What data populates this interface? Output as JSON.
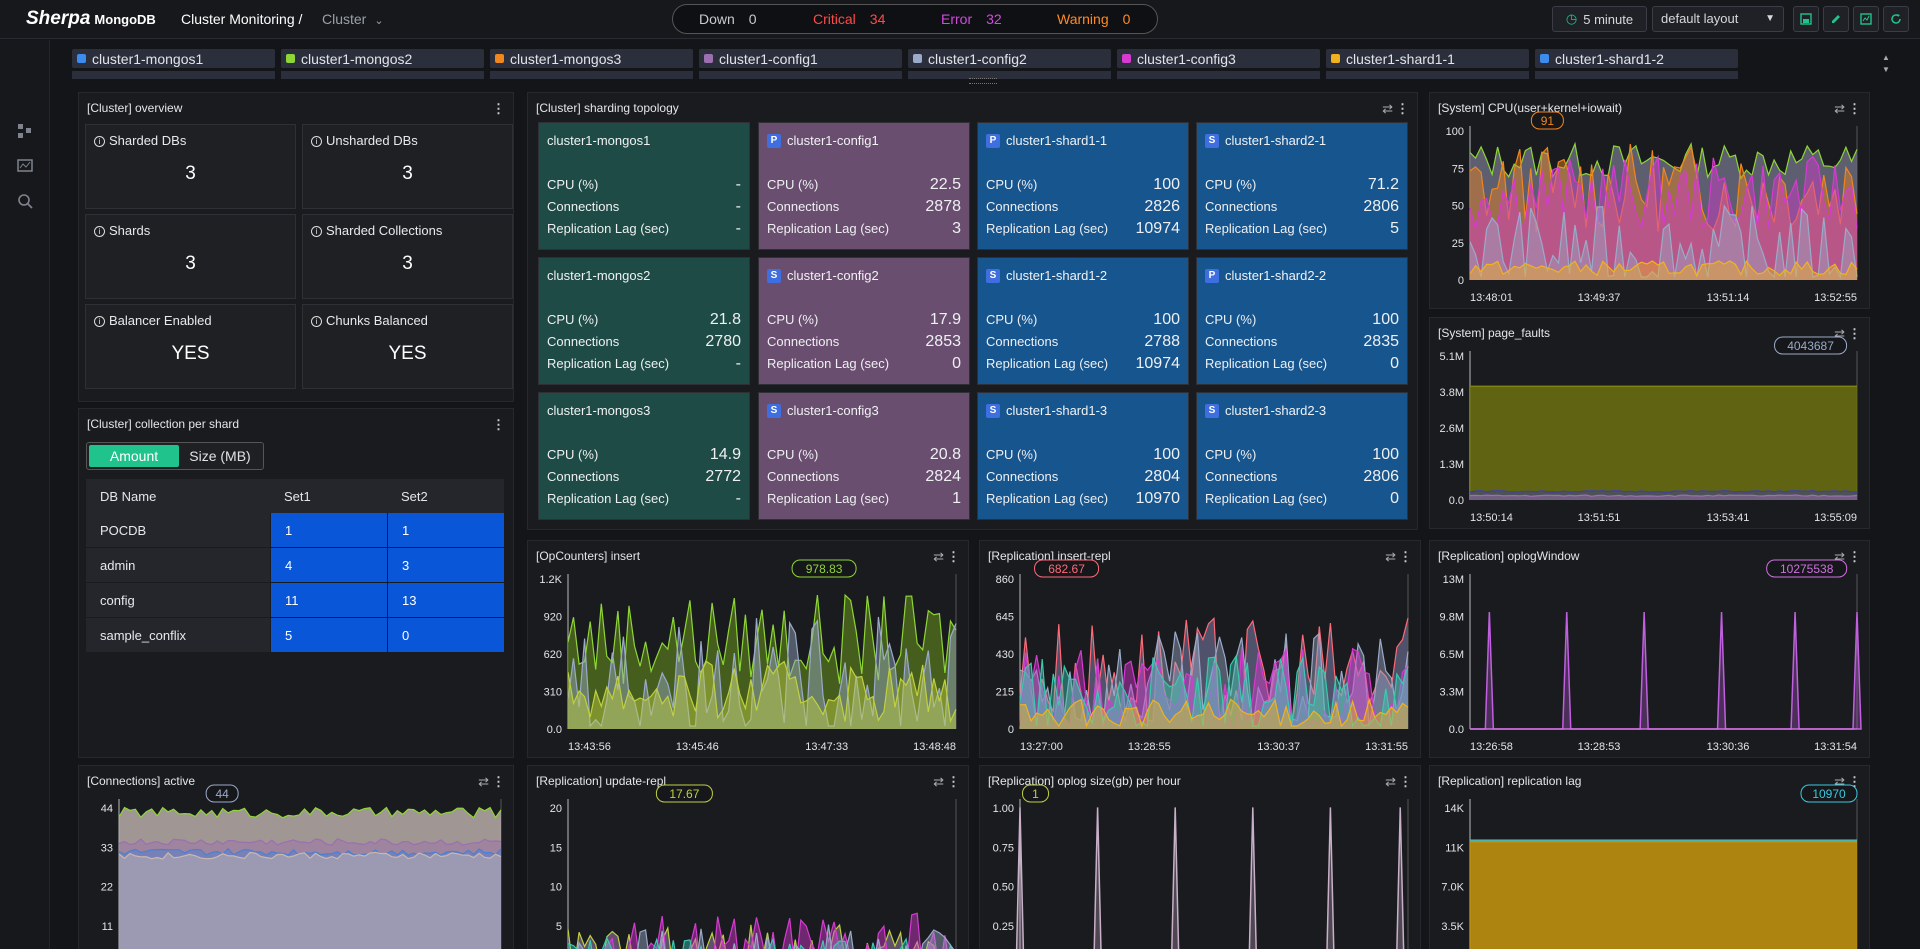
{
  "header": {
    "logo_main": "Sherpa",
    "logo_sub": "MongoDB",
    "breadcrumb": "Cluster Monitoring /",
    "breadcrumb_current": "Cluster",
    "status": [
      {
        "label": "Down",
        "value": "0",
        "color": "#c8cad0"
      },
      {
        "label": "Critical",
        "value": "34",
        "color": "#ff4a4a"
      },
      {
        "label": "Error",
        "value": "32",
        "color": "#d24ae0"
      },
      {
        "label": "Warning",
        "value": "0",
        "color": "#ff8a24"
      }
    ],
    "interval": "5 minute",
    "layout": "default layout"
  },
  "tabs": [
    {
      "label": "cluster1-mongos1",
      "color": "#3c8cf0"
    },
    {
      "label": "cluster1-mongos2",
      "color": "#8ed635"
    },
    {
      "label": "cluster1-mongos3",
      "color": "#f0861e"
    },
    {
      "label": "cluster1-config1",
      "color": "#9c6fb0"
    },
    {
      "label": "cluster1-config2",
      "color": "#9aaac8"
    },
    {
      "label": "cluster1-config3",
      "color": "#d63ad0"
    },
    {
      "label": "cluster1-shard1-1",
      "color": "#f0b21e"
    },
    {
      "label": "cluster1-shard1-2",
      "color": "#3c8cf0"
    }
  ],
  "overview": {
    "title": "[Cluster]  overview",
    "cards": [
      {
        "label": "Sharded DBs",
        "value": "3"
      },
      {
        "label": "Unsharded DBs",
        "value": "3"
      },
      {
        "label": "Shards",
        "value": "3"
      },
      {
        "label": "Sharded Collections",
        "value": "3"
      },
      {
        "label": "Balancer Enabled",
        "value": "YES"
      },
      {
        "label": "Chunks Balanced",
        "value": "YES"
      }
    ]
  },
  "collection_per_shard": {
    "title": "[Cluster]  collection per shard",
    "toggle_on": "Amount",
    "toggle_off": "Size (MB)",
    "headers": [
      "DB Name",
      "Set1",
      "Set2"
    ],
    "rows": [
      [
        "POCDB",
        "1",
        "1"
      ],
      [
        "admin",
        "4",
        "3"
      ],
      [
        "config",
        "11",
        "13"
      ],
      [
        "sample_conflix",
        "5",
        "0"
      ]
    ]
  },
  "topology": {
    "title": "[Cluster]  sharding topology",
    "row_labels": [
      "CPU (%)",
      "Connections",
      "Replication Lag (sec)"
    ],
    "nodes": [
      [
        {
          "name": "cluster1-mongos1",
          "badge": "",
          "kind": "mg",
          "cpu": "-",
          "conn": "-",
          "lag": "-"
        },
        {
          "name": "cluster1-config1",
          "badge": "P",
          "kind": "cf",
          "cpu": "22.5",
          "conn": "2878",
          "lag": "3"
        },
        {
          "name": "cluster1-shard1-1",
          "badge": "P",
          "kind": "sh",
          "cpu": "100",
          "conn": "2826",
          "lag": "10974"
        },
        {
          "name": "cluster1-shard2-1",
          "badge": "S",
          "kind": "sh",
          "cpu": "71.2",
          "conn": "2806",
          "lag": "5"
        }
      ],
      [
        {
          "name": "cluster1-mongos2",
          "badge": "",
          "kind": "mg",
          "cpu": "21.8",
          "conn": "2780",
          "lag": "-"
        },
        {
          "name": "cluster1-config2",
          "badge": "S",
          "kind": "cf",
          "cpu": "17.9",
          "conn": "2853",
          "lag": "0"
        },
        {
          "name": "cluster1-shard1-2",
          "badge": "S",
          "kind": "sh",
          "cpu": "100",
          "conn": "2788",
          "lag": "10974"
        },
        {
          "name": "cluster1-shard2-2",
          "badge": "P",
          "kind": "sh",
          "cpu": "100",
          "conn": "2835",
          "lag": "0"
        }
      ],
      [
        {
          "name": "cluster1-mongos3",
          "badge": "",
          "kind": "mg",
          "cpu": "14.9",
          "conn": "2772",
          "lag": "-"
        },
        {
          "name": "cluster1-config3",
          "badge": "S",
          "kind": "cf",
          "cpu": "20.8",
          "conn": "2824",
          "lag": "1"
        },
        {
          "name": "cluster1-shard1-3",
          "badge": "S",
          "kind": "sh",
          "cpu": "100",
          "conn": "2804",
          "lag": "10970"
        },
        {
          "name": "cluster1-shard2-3",
          "badge": "S",
          "kind": "sh",
          "cpu": "100",
          "conn": "2806",
          "lag": "0"
        }
      ]
    ]
  },
  "chart_data": [
    {
      "id": "cpu",
      "type": "area",
      "title": "[System]  CPU(user+kernel+iowait)",
      "yticks": [
        "100",
        "75",
        "50",
        "25",
        "0"
      ],
      "ylim": [
        0,
        100
      ],
      "xticks": [
        "13:48:01",
        "13:49:37",
        "13:51:14",
        "13:52:55"
      ],
      "callout": "91",
      "callout_color": "#f0861e",
      "series_colors": [
        "#8ed635",
        "#f0861e",
        "#d63ad0",
        "#9aaac8",
        "#f0b21e"
      ],
      "series_levels": [
        0.8,
        0.62,
        0.58,
        0.2,
        0.08
      ],
      "noise": [
        0.12,
        0.3,
        0.25,
        0.3,
        0.05
      ],
      "fill": "#6a6a7e"
    },
    {
      "id": "pf",
      "type": "area",
      "title": "[System]  page_faults",
      "yticks": [
        "5.1M",
        "3.8M",
        "2.6M",
        "1.3M",
        "0.0"
      ],
      "ylim": [
        0,
        5.1
      ],
      "xticks": [
        "13:50:14",
        "13:51:51",
        "13:53:41",
        "13:55:09"
      ],
      "callout": "4043687",
      "callout_color": "#9aaac8",
      "series_colors": [
        "#8a8c12",
        "#3a3eb0",
        "#9c6fb0"
      ],
      "series_levels": [
        0.79,
        0.06,
        0.03
      ],
      "noise": [
        0,
        0.005,
        0.005
      ],
      "fill": "#6d7010"
    },
    {
      "id": "ins",
      "type": "area",
      "title": "[OpCounters]  insert",
      "yticks": [
        "1.2K",
        "920",
        "620",
        "310",
        "0.0"
      ],
      "ylim": [
        0,
        1240
      ],
      "xticks": [
        "13:43:56",
        "13:45:46",
        "13:47:33",
        "13:48:48"
      ],
      "callout": "978.83",
      "callout_color": "#8ed635",
      "series_colors": [
        "#8ed635",
        "#9aaac8",
        "#c0d040"
      ],
      "series_levels": [
        0.6,
        0.35,
        0.25
      ],
      "noise": [
        0.3,
        0.4,
        0.2
      ],
      "fill": "#4e6a1e"
    },
    {
      "id": "irepl",
      "type": "area",
      "title": "[Replication]  insert-repl",
      "yticks": [
        "860",
        "645",
        "430",
        "215",
        "0"
      ],
      "ylim": [
        0,
        860
      ],
      "xticks": [
        "13:27:00",
        "13:28:55",
        "13:30:37",
        "13:31:55"
      ],
      "callout": "682.67",
      "callout_color": "#ff6a78",
      "series_colors": [
        "#ff6a78",
        "#9aaac8",
        "#d63ad0",
        "#3cc8b0",
        "#f0b21e"
      ],
      "series_levels": [
        0.35,
        0.3,
        0.25,
        0.2,
        0.1
      ],
      "noise": [
        0.4,
        0.35,
        0.3,
        0.3,
        0.1
      ],
      "fill": "#5a5a78"
    },
    {
      "id": "oplog",
      "type": "spike",
      "title": "[Replication]  oplogWindow",
      "yticks": [
        "13M",
        "9.8M",
        "6.5M",
        "3.3M",
        "0.0"
      ],
      "ylim": [
        0,
        13
      ],
      "xticks": [
        "13:26:58",
        "13:28:53",
        "13:30:36",
        "13:31:54"
      ],
      "callout": "10275538",
      "callout_color": "#d070e0",
      "series_colors": [
        "#c060e0"
      ],
      "spikes": [
        0.05,
        0.25,
        0.45,
        0.65,
        0.84,
        1.0
      ],
      "spike_level": 0.78
    },
    {
      "id": "conn",
      "type": "area",
      "title": "[Connections]  active",
      "yticks": [
        "44",
        "33",
        "22",
        "11"
      ],
      "ylim": [
        0,
        46
      ],
      "xticks": [],
      "callout": "44",
      "callout_color": "#9aaac8",
      "series_colors": [
        "#8ed635",
        "#9c6fb0",
        "#4a7fd4",
        "#c8b8b0"
      ],
      "series_levels": [
        0.95,
        0.78,
        0.72,
        0.7
      ],
      "noise": [
        0.03,
        0.02,
        0.02,
        0.02
      ],
      "fill": "#b8aca8"
    },
    {
      "id": "urepl",
      "type": "area",
      "title": "[Replication]  update-repl",
      "yticks": [
        "20",
        "15",
        "10",
        "5"
      ],
      "ylim": [
        0,
        21
      ],
      "xticks": [],
      "callout": "17.67",
      "callout_color": "#c0d040",
      "series_colors": [
        "#c0d040",
        "#d63ad0",
        "#3cc8b0",
        "#9aaac8",
        "#f0861e"
      ],
      "series_levels": [
        0.1,
        0.12,
        0.08,
        0.1,
        0.05
      ],
      "noise": [
        0.2,
        0.25,
        0.15,
        0.2,
        0.1
      ],
      "fill": "#6a5a7a"
    },
    {
      "id": "osize",
      "type": "spike",
      "title": "[Replication]  oplog size(gb) per hour",
      "yticks": [
        "1.00",
        "0.75",
        "0.50",
        "0.25"
      ],
      "ylim": [
        0,
        1.05
      ],
      "xticks": [],
      "callout": "1",
      "callout_color": "#c0d040",
      "series_colors": [
        "#c8b0c8"
      ],
      "spikes": [
        0.0,
        0.2,
        0.4,
        0.6,
        0.8,
        0.98
      ],
      "spike_level": 0.98
    },
    {
      "id": "rlag",
      "type": "area",
      "title": "[Replication]  replication lag",
      "yticks": [
        "14K",
        "11K",
        "7.0K",
        "3.5K"
      ],
      "ylim": [
        0,
        14
      ],
      "xticks": [],
      "callout": "10970",
      "callout_color": "#3cc8e0",
      "series_colors": [
        "#3cc8e0",
        "#c89a10"
      ],
      "series_levels": [
        0.79,
        0.78
      ],
      "noise": [
        0,
        0
      ],
      "fill": "#b08410"
    }
  ]
}
